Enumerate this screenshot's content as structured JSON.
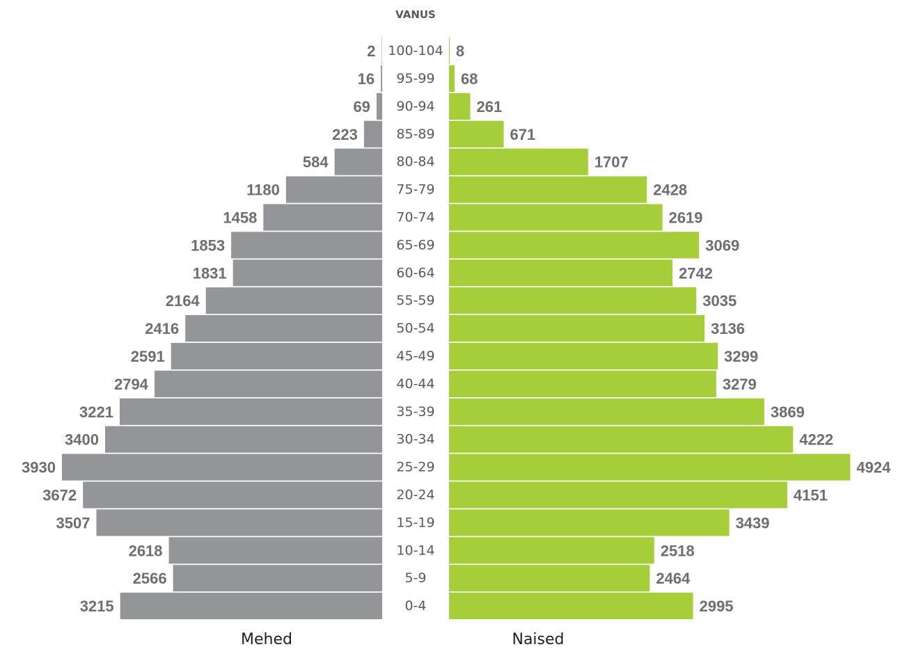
{
  "chart_data": {
    "type": "bar",
    "orientation": "horizontal-population-pyramid",
    "age_header": "VANUS",
    "categories": [
      "100-104",
      "95-99",
      "90-94",
      "85-89",
      "80-84",
      "75-79",
      "70-74",
      "65-69",
      "60-64",
      "55-59",
      "50-54",
      "45-49",
      "40-44",
      "35-39",
      "30-34",
      "25-29",
      "20-24",
      "15-19",
      "10-14",
      "5-9",
      "0-4"
    ],
    "series": [
      {
        "name": "Mehed",
        "color": "#939598",
        "side": "left",
        "values": [
          2,
          16,
          69,
          223,
          584,
          1180,
          1458,
          1853,
          1831,
          2164,
          2416,
          2591,
          2794,
          3221,
          3400,
          3930,
          3672,
          3507,
          2618,
          2566,
          3215
        ]
      },
      {
        "name": "Naised",
        "color": "#a6ce39",
        "side": "right",
        "values": [
          8,
          68,
          261,
          671,
          1707,
          2428,
          2619,
          3069,
          2742,
          3035,
          3136,
          3299,
          3279,
          3869,
          4222,
          4924,
          4151,
          3439,
          2518,
          2464,
          2995
        ]
      }
    ],
    "value_labels": {
      "Mehed": [
        "2",
        "16",
        "69",
        "223",
        "584",
        "1180",
        "1458",
        "1853",
        "1831",
        "2164",
        "2416",
        "2591",
        "2794",
        "3221",
        "3400",
        "3930",
        "3672",
        "3507",
        "2618",
        "2566",
        "3215"
      ],
      "Naised": [
        "8",
        "68",
        "261",
        "671",
        "1707",
        "2428",
        "2619",
        "3069",
        "2742",
        "3035",
        "3136",
        "3299",
        "3279",
        "3869",
        "4222",
        "4924",
        "4151",
        "3439",
        "2518",
        "2464",
        "2995"
      ]
    },
    "legend": {
      "left": "Mehed",
      "right": "Naised"
    }
  }
}
